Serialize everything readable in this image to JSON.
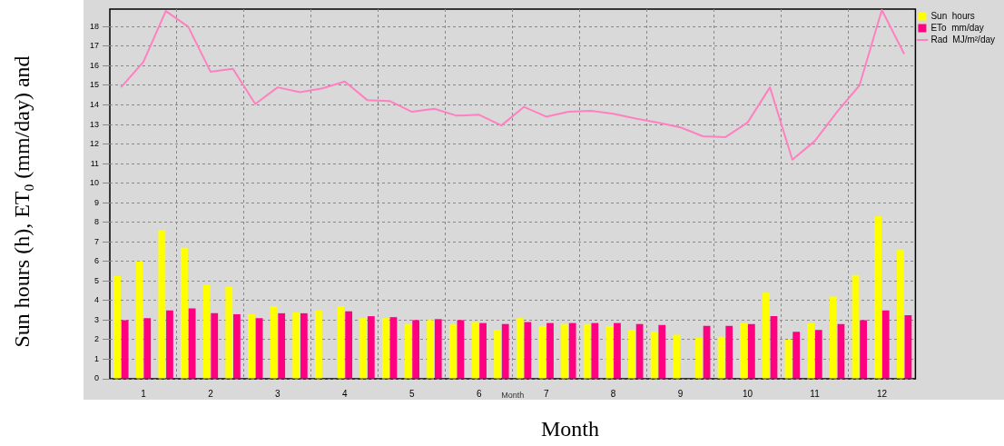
{
  "chart_data": {
    "type": "bar",
    "xlabel": "Month",
    "ylabel": "Sun hours (h), ET$_{0}$ (mm/day) and",
    "annotations": [
      "Month"
    ],
    "categories": [
      null,
      "1",
      null,
      null,
      "2",
      null,
      null,
      "3",
      null,
      null,
      "4",
      null,
      null,
      "5",
      null,
      null,
      "6",
      null,
      null,
      "7",
      null,
      null,
      "8",
      null,
      null,
      "9",
      null,
      null,
      "10",
      null,
      null,
      "11",
      null,
      null,
      "12",
      null
    ],
    "series": [
      {
        "name": "Sun  hours",
        "color": "#ffff00",
        "values": [
          5.25,
          6.0,
          7.6,
          6.7,
          4.8,
          4.7,
          3.3,
          3.7,
          3.4,
          3.5,
          3.7,
          3.1,
          3.1,
          2.8,
          3.0,
          2.8,
          2.9,
          2.5,
          3.1,
          2.7,
          2.8,
          2.8,
          2.7,
          2.5,
          2.4,
          2.25,
          2.1,
          2.15,
          2.85,
          4.4,
          2.0,
          2.85,
          4.2,
          5.3,
          8.3,
          6.6
        ]
      },
      {
        "name": "ETo  mm/day",
        "color": "#ff0080",
        "values": [
          3.0,
          3.1,
          3.5,
          3.6,
          3.35,
          3.3,
          3.1,
          3.35,
          3.35,
          null,
          3.45,
          3.2,
          3.15,
          3.0,
          3.05,
          3.0,
          2.85,
          2.8,
          2.9,
          2.85,
          2.85,
          2.85,
          2.85,
          2.8,
          2.75,
          null,
          2.7,
          2.7,
          2.8,
          3.2,
          2.4,
          2.5,
          2.8,
          3.0,
          3.5,
          3.25
        ]
      },
      {
        "name": "Rad  MJ/m²/day",
        "type": "line",
        "color": "#ff80c0",
        "values": [
          14.9,
          16.2,
          18.8,
          18.0,
          15.7,
          15.85,
          14.05,
          14.9,
          14.65,
          14.85,
          15.2,
          14.25,
          14.2,
          13.65,
          13.8,
          13.45,
          13.5,
          12.95,
          13.9,
          13.4,
          13.65,
          13.7,
          13.55,
          13.3,
          13.1,
          12.85,
          12.4,
          12.35,
          13.1,
          14.9,
          11.2,
          12.15,
          13.65,
          15.0,
          18.85,
          16.6
        ]
      }
    ],
    "ylim": [
      0,
      18.9
    ],
    "yticks": [
      0,
      1,
      2,
      3,
      4,
      5,
      6,
      7,
      8,
      9,
      10,
      11,
      12,
      13,
      14,
      15,
      16,
      17,
      18
    ],
    "grid": true,
    "legend": "top right",
    "marker": "none",
    "line_style": "solid"
  }
}
